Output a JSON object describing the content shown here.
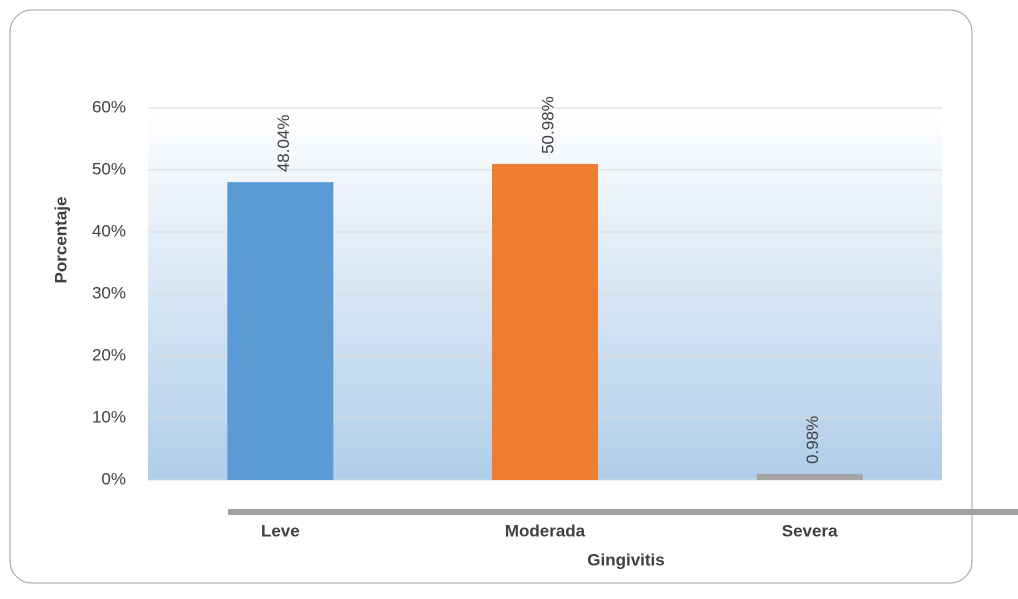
{
  "chart_data": {
    "type": "bar",
    "categories": [
      "Leve",
      "Moderada",
      "Severa"
    ],
    "values": [
      48.04,
      50.98,
      0.98
    ],
    "value_labels": [
      "48.04%",
      "50.98%",
      "0.98%"
    ],
    "colors": [
      "#5b9bd5",
      "#ed7d31",
      "#a5a5a5"
    ],
    "x_label": "Gingivitis",
    "y_label": "Porcentaje",
    "ylim": [
      0,
      60
    ],
    "yticks": [
      {
        "value": 0,
        "label": "0%"
      },
      {
        "value": 10,
        "label": "10%"
      },
      {
        "value": 20,
        "label": "20%"
      },
      {
        "value": 30,
        "label": "30%"
      },
      {
        "value": 40,
        "label": "40%"
      },
      {
        "value": 50,
        "label": "50%"
      },
      {
        "value": 60,
        "label": "60%"
      }
    ],
    "grid": true
  }
}
